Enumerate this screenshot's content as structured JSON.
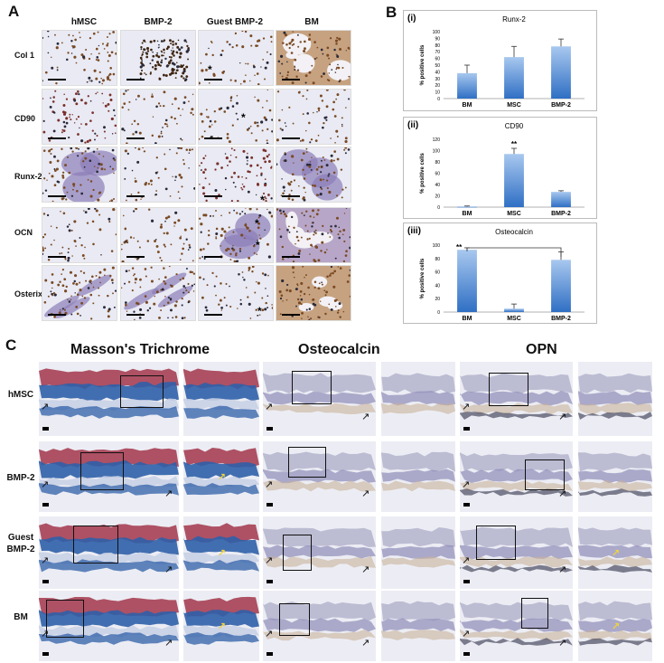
{
  "panel_labels": {
    "a": "A",
    "b": "B",
    "c": "C"
  },
  "panel_a": {
    "columns": [
      "hMSC",
      "BMP-2",
      "Guest BMP-2",
      "BM"
    ],
    "rows": [
      "Col 1",
      "CD90",
      "Runx-2",
      "OCN",
      "Osterix"
    ],
    "asterisk": "*"
  },
  "panel_b": {
    "ylabel": "% positive cells",
    "sig_marker": "**"
  },
  "chart_data": [
    {
      "type": "bar",
      "panel": "(i)",
      "title": "Runx-2",
      "categories": [
        "BM",
        "MSC",
        "BMP-2"
      ],
      "values": [
        38,
        62,
        78
      ],
      "errors": [
        12,
        16,
        11
      ],
      "ylabel": "% positive cells",
      "ylim": [
        0,
        100
      ],
      "yticks": [
        "0",
        "10",
        "20",
        "30",
        "40",
        "50",
        "60",
        "70",
        "80",
        "90",
        "100"
      ]
    },
    {
      "type": "bar",
      "panel": "(ii)",
      "title": "CD90",
      "categories": [
        "BM",
        "MSC",
        "BMP-2"
      ],
      "values": [
        1,
        94,
        27
      ],
      "errors": [
        1,
        10,
        2
      ],
      "ylabel": "% positive cells",
      "ylim": [
        0,
        120
      ],
      "yticks": [
        "0",
        "20",
        "40",
        "60",
        "80",
        "100",
        "120"
      ],
      "annotation": "**"
    },
    {
      "type": "bar",
      "panel": "(iii)",
      "title": "Osteocalcin",
      "categories": [
        "BM",
        "MSC",
        "BMP-2"
      ],
      "values": [
        93,
        5,
        78
      ],
      "errors": [
        3,
        7,
        12
      ],
      "ylabel": "% positive cells",
      "ylim": [
        0,
        100
      ],
      "yticks": [
        "0",
        "20",
        "40",
        "60",
        "80",
        "100"
      ],
      "annotation": "**"
    }
  ],
  "panel_c": {
    "stains": [
      "Masson's Trichrome",
      "Osteocalcin",
      "OPN"
    ],
    "rows": [
      "hMSC",
      "BMP-2",
      "Guest\nBMP-2",
      "BM"
    ],
    "arrow_glyph": "↗"
  },
  "colors": {
    "bar_top": "#a8c8ef",
    "bar_bottom": "#2f6fc4",
    "trichrome_blue": "#2f5fa8",
    "trichrome_red": "#a3354a",
    "ihc_background": "#e9eaf3",
    "ihc_purple": "#8b7db8",
    "ihc_brown": "#7a4a24"
  }
}
